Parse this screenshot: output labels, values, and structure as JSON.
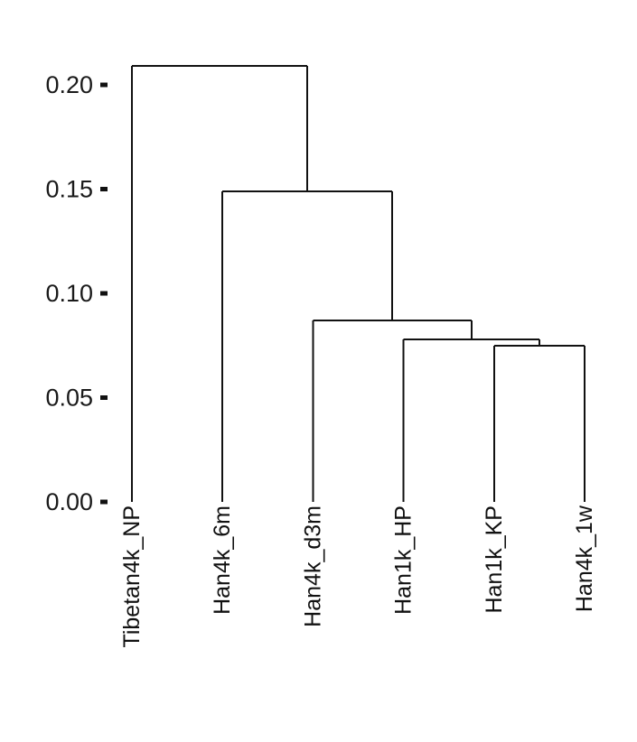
{
  "chart_data": {
    "type": "dendrogram",
    "title": "",
    "xlabel": "",
    "ylabel": "",
    "ylim": [
      0,
      0.21
    ],
    "yticks": [
      {
        "value": 0.0,
        "label": "0.00"
      },
      {
        "value": 0.05,
        "label": "0.05"
      },
      {
        "value": 0.1,
        "label": "0.10"
      },
      {
        "value": 0.15,
        "label": "0.15"
      },
      {
        "value": 0.2,
        "label": "0.20"
      }
    ],
    "leaves": [
      "Tibetan4k_NP",
      "Han4k_6m",
      "Han4k_d3m",
      "Han1k_HP",
      "Han1k_KP",
      "Han4k_1w"
    ],
    "merges": [
      {
        "id": "m1",
        "left": "Han1k_KP",
        "right": "Han4k_1w",
        "height": 0.075
      },
      {
        "id": "m2",
        "left": "Han1k_HP",
        "right": "m1",
        "height": 0.078
      },
      {
        "id": "m3",
        "left": "Han4k_d3m",
        "right": "m2",
        "height": 0.087
      },
      {
        "id": "m4",
        "left": "Han4k_6m",
        "right": "m3",
        "height": 0.149
      },
      {
        "id": "m5",
        "left": "Tibetan4k_NP",
        "right": "m4",
        "height": 0.209
      }
    ],
    "grid": false,
    "line_color": "#111111"
  }
}
